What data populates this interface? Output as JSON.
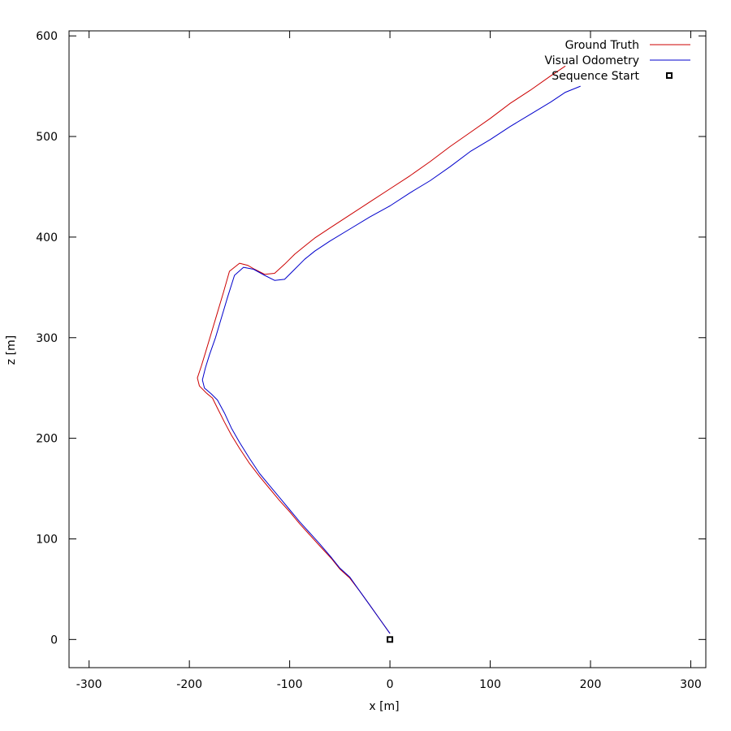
{
  "chart_data": {
    "type": "line",
    "title": "",
    "xlabel": "x [m]",
    "ylabel": "z [m]",
    "xlim": [
      -320,
      315
    ],
    "ylim": [
      -28,
      605
    ],
    "xticks": [
      -300,
      -200,
      -100,
      0,
      100,
      200,
      300
    ],
    "yticks": [
      0,
      100,
      200,
      300,
      400,
      500,
      600
    ],
    "grid": false,
    "legend_position": "top-right",
    "series": [
      {
        "name": "Ground Truth",
        "color": "#cc0000",
        "points": [
          [
            0,
            6
          ],
          [
            -10,
            20
          ],
          [
            -20,
            34
          ],
          [
            -30,
            48
          ],
          [
            -40,
            61
          ],
          [
            -50,
            70
          ],
          [
            -58,
            80
          ],
          [
            -70,
            93
          ],
          [
            -80,
            104
          ],
          [
            -90,
            115
          ],
          [
            -100,
            127
          ],
          [
            -110,
            138
          ],
          [
            -120,
            150
          ],
          [
            -130,
            162
          ],
          [
            -140,
            175
          ],
          [
            -150,
            190
          ],
          [
            -158,
            203
          ],
          [
            -165,
            216
          ],
          [
            -172,
            230
          ],
          [
            -177,
            240
          ],
          [
            -183,
            245
          ],
          [
            -190,
            252
          ],
          [
            -192,
            260
          ],
          [
            -188,
            272
          ],
          [
            -184,
            285
          ],
          [
            -178,
            305
          ],
          [
            -172,
            325
          ],
          [
            -166,
            345
          ],
          [
            -160,
            366
          ],
          [
            -150,
            374
          ],
          [
            -142,
            372
          ],
          [
            -135,
            368
          ],
          [
            -125,
            363
          ],
          [
            -115,
            364
          ],
          [
            -105,
            373
          ],
          [
            -95,
            383
          ],
          [
            -85,
            391
          ],
          [
            -75,
            399
          ],
          [
            -60,
            409
          ],
          [
            -40,
            422
          ],
          [
            -20,
            435
          ],
          [
            0,
            448
          ],
          [
            20,
            461
          ],
          [
            40,
            475
          ],
          [
            60,
            490
          ],
          [
            80,
            504
          ],
          [
            100,
            518
          ],
          [
            120,
            533
          ],
          [
            140,
            546
          ],
          [
            160,
            560
          ],
          [
            175,
            570
          ]
        ]
      },
      {
        "name": "Visual Odometry",
        "color": "#0000cc",
        "points": [
          [
            0,
            6
          ],
          [
            -10,
            20
          ],
          [
            -20,
            34
          ],
          [
            -30,
            48
          ],
          [
            -40,
            62
          ],
          [
            -50,
            71
          ],
          [
            -58,
            81
          ],
          [
            -70,
            95
          ],
          [
            -80,
            106
          ],
          [
            -90,
            117
          ],
          [
            -100,
            129
          ],
          [
            -110,
            141
          ],
          [
            -120,
            153
          ],
          [
            -130,
            165
          ],
          [
            -140,
            180
          ],
          [
            -150,
            196
          ],
          [
            -158,
            210
          ],
          [
            -165,
            225
          ],
          [
            -172,
            238
          ],
          [
            -178,
            244
          ],
          [
            -185,
            250
          ],
          [
            -187,
            258
          ],
          [
            -184,
            270
          ],
          [
            -180,
            283
          ],
          [
            -174,
            300
          ],
          [
            -168,
            320
          ],
          [
            -162,
            340
          ],
          [
            -155,
            362
          ],
          [
            -146,
            370
          ],
          [
            -136,
            368
          ],
          [
            -125,
            362
          ],
          [
            -115,
            357
          ],
          [
            -105,
            358
          ],
          [
            -95,
            368
          ],
          [
            -85,
            378
          ],
          [
            -75,
            386
          ],
          [
            -60,
            396
          ],
          [
            -40,
            408
          ],
          [
            -20,
            420
          ],
          [
            0,
            431
          ],
          [
            20,
            444
          ],
          [
            40,
            456
          ],
          [
            60,
            470
          ],
          [
            80,
            485
          ],
          [
            100,
            497
          ],
          [
            120,
            510
          ],
          [
            140,
            522
          ],
          [
            160,
            534
          ],
          [
            175,
            544
          ],
          [
            190,
            550
          ]
        ]
      },
      {
        "name": "Sequence Start",
        "color": "#000000",
        "marker": "square",
        "points": [
          [
            0,
            0
          ]
        ]
      }
    ]
  }
}
